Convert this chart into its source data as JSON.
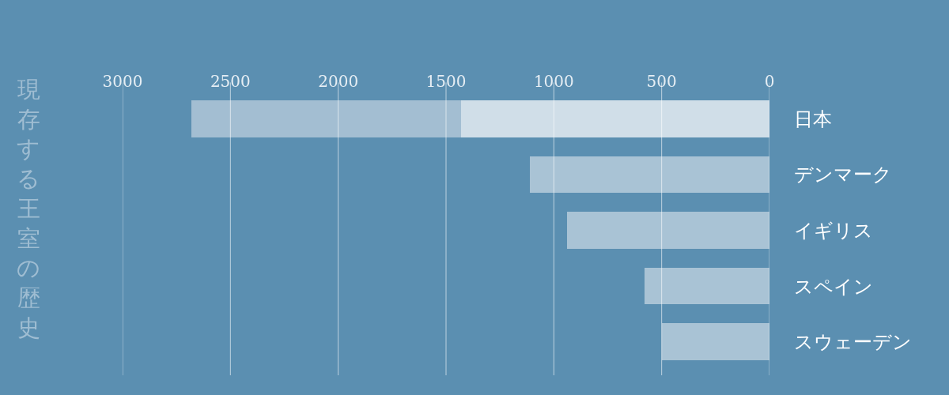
{
  "chart_data": {
    "type": "bar",
    "title": "現存する王室の歴史",
    "orientation": "horizontal",
    "stacked": true,
    "categories": [
      "日本",
      "デンマーク",
      "イギリス",
      "スペイン",
      "スウェーデン"
    ],
    "series": [
      {
        "colors": [
          "#d0dee8",
          "#a9c3d5",
          "#a9c3d5",
          "#a9c3d5",
          "#a9c3d5"
        ],
        "values": [
          1430,
          1110,
          940,
          580,
          500
        ]
      },
      {
        "color": "#a3bed2",
        "values": [
          1250,
          null,
          null,
          null,
          null
        ]
      }
    ],
    "xlim": [
      3000,
      0
    ],
    "xticks": [
      3000,
      2500,
      2000,
      1500,
      1000,
      500,
      0
    ],
    "grid": "x"
  }
}
